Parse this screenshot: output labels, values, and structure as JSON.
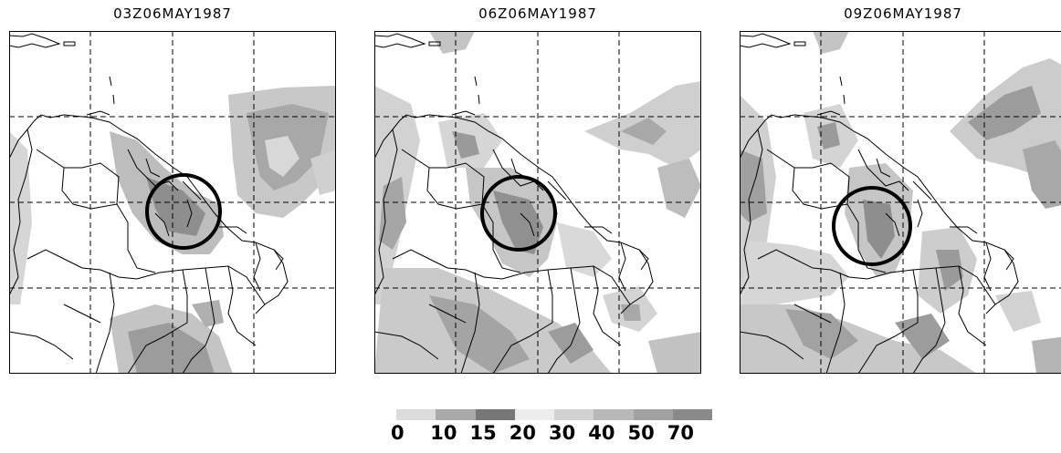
{
  "panels": [
    {
      "title": "03Z06MAY1987"
    },
    {
      "title": "06Z06MAY1987"
    },
    {
      "title": "09Z06MAY1987"
    }
  ],
  "legend": {
    "labels": [
      "0",
      "10",
      "15",
      "20",
      "30",
      "40",
      "50",
      "70"
    ],
    "colors": [
      "#dcdcdc",
      "#aaaaaa",
      "#777777",
      "#ececec",
      "#d2d2d2",
      "#b8b8b8",
      "#a2a2a2",
      "#8a8a8a"
    ]
  }
}
